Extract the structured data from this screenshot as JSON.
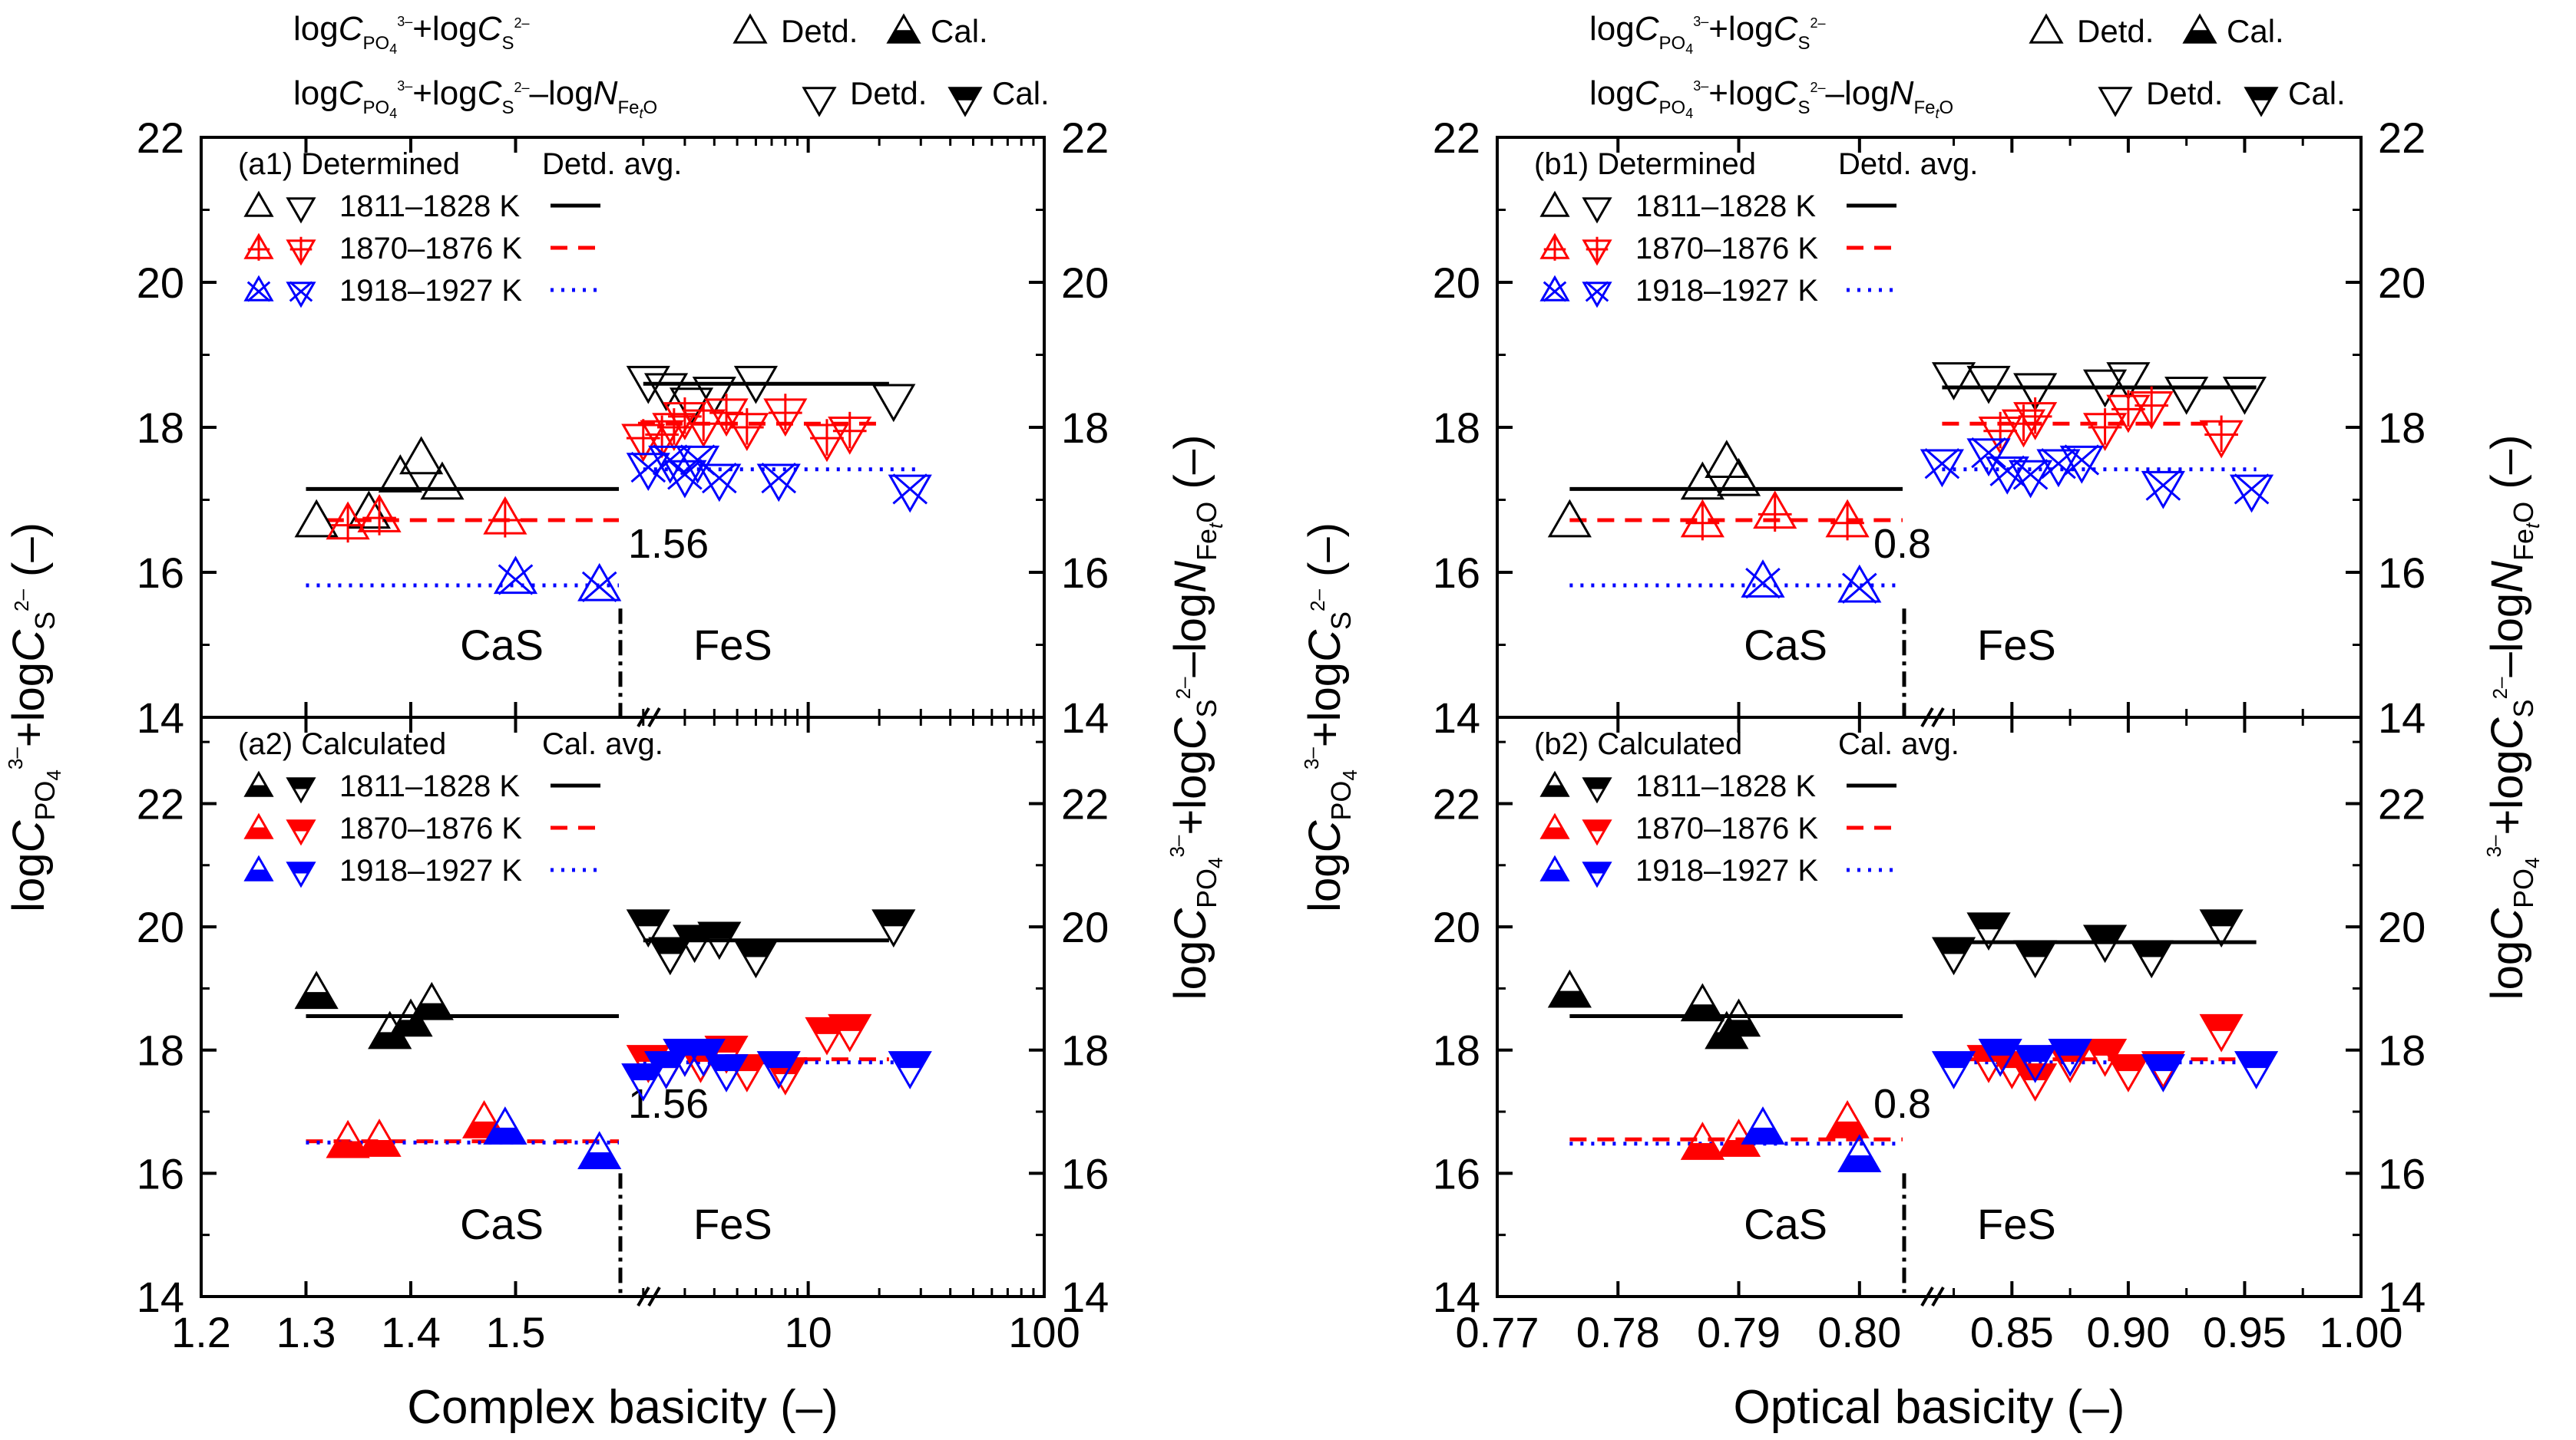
{
  "legend": {
    "row1": {
      "lead": "log",
      "C": "C",
      "po4_sub": "PO",
      "po4_sub2": "4",
      "po4_sup": "3–",
      "plus": "+log",
      "s_sub": "S",
      "s_sup": "2–"
    },
    "row2": {
      "minus": "–log",
      "N": "N",
      "fe_sub": "Fe",
      "t_sub": "t",
      "o_sub": "O"
    },
    "detd": "Detd.",
    "cal": "Cal."
  },
  "axis_labels": {
    "y_left_parts": [
      "log",
      "C",
      "PO",
      "4",
      "3–",
      "+log",
      "C",
      "S",
      "2–",
      " (–)"
    ],
    "y_right_parts": [
      "log",
      "C",
      "PO",
      "4",
      "3–",
      "+log",
      "C",
      "S",
      "2–",
      "–log",
      "N",
      "Fe",
      "t",
      "O",
      " (–)"
    ]
  },
  "chart_data": [
    {
      "id": "a",
      "type": "scatter",
      "xlabel": "Complex basicity (–)",
      "x_ticks_lin": [
        "1.2",
        "1.3",
        "1.4",
        "1.5"
      ],
      "x_ticks_log": [
        "10",
        "100"
      ],
      "x_lin_range": [
        1.2,
        1.6
      ],
      "x_log_range": [
        1.6,
        100
      ],
      "break_value": "1.56",
      "phase_left": "CaS",
      "phase_right": "FeS",
      "ylim": [
        14,
        22
      ],
      "y_ticks": [
        "14",
        "16",
        "18",
        "20",
        "22"
      ],
      "panels": [
        {
          "title": "(a1) Determined",
          "avg_title": "Detd. avg.",
          "temps": [
            "1811–1828 K",
            "1870–1876 K",
            "1918–1927 K"
          ],
          "colors": [
            "#000000",
            "#ff0000",
            "#0000ff"
          ],
          "avg": [
            {
              "lin": [
                1.3,
                1.6,
                17.15
              ],
              "log": [
                2.0,
                22,
                18.6
              ]
            },
            {
              "lin": [
                1.32,
                1.6,
                16.72
              ],
              "log": [
                1.9,
                20,
                18.05
              ]
            },
            {
              "lin": [
                1.3,
                1.6,
                15.82
              ],
              "log": [
                2.0,
                30,
                17.42
              ]
            }
          ],
          "series": [
            {
              "name": "Detd. 1811–1828 K CaS",
              "temp": 0,
              "marker": "up",
              "style": "hollow",
              "x": [
                1.31,
                1.36,
                1.41,
                1.39,
                1.43
              ],
              "y": [
                16.68,
                16.8,
                17.55,
                17.3,
                17.2
              ],
              "scale": "lin"
            },
            {
              "name": "Detd. 1811–1828 K FeS",
              "temp": 0,
              "marker": "down",
              "style": "hollow",
              "x": [
                2.1,
                2.5,
                3.2,
                4,
                6,
                23
              ],
              "y": [
                18.65,
                18.55,
                18.35,
                18.5,
                18.65,
                18.4
              ],
              "scale": "log"
            },
            {
              "name": "Detd. 1870–1876 K CaS",
              "temp": 1,
              "marker": "up",
              "style": "cross",
              "x": [
                1.34,
                1.37,
                1.49
              ],
              "y": [
                16.65,
                16.75,
                16.72
              ],
              "scale": "lin"
            },
            {
              "name": "Detd. 1870–1876 K FeS",
              "temp": 1,
              "marker": "down",
              "style": "cross",
              "x": [
                2.0,
                2.4,
                2.7,
                3.0,
                3.6,
                4.5,
                5.5,
                8,
                12,
                15
              ],
              "y": [
                17.85,
                17.9,
                18.0,
                18.15,
                18.05,
                18.2,
                18.0,
                18.2,
                17.85,
                17.95
              ],
              "scale": "log"
            },
            {
              "name": "Detd. 1918–1927 K CaS",
              "temp": 2,
              "marker": "up",
              "style": "xcross",
              "x": [
                1.5,
                1.58
              ],
              "y": [
                15.9,
                15.8
              ],
              "scale": "lin"
            },
            {
              "name": "Detd. 1918–1927 K FeS",
              "temp": 2,
              "marker": "down",
              "style": "xcross",
              "x": [
                2.1,
                2.6,
                3.0,
                3.4,
                4.2,
                7.5,
                27
              ],
              "y": [
                17.45,
                17.55,
                17.35,
                17.55,
                17.3,
                17.3,
                17.15
              ],
              "scale": "log"
            }
          ]
        },
        {
          "title": "(a2) Calculated",
          "avg_title": "Cal. avg.",
          "temps": [
            "1811–1828 K",
            "1870–1876 K",
            "1918–1927 K"
          ],
          "colors": [
            "#000000",
            "#ff0000",
            "#0000ff"
          ],
          "avg": [
            {
              "lin": [
                1.3,
                1.6,
                18.55
              ],
              "log": [
                2.0,
                22,
                19.78
              ]
            },
            {
              "lin": [
                1.3,
                1.6,
                16.52
              ],
              "log": [
                1.9,
                22,
                17.85
              ]
            },
            {
              "lin": [
                1.3,
                1.6,
                16.5
              ],
              "log": [
                2.0,
                30,
                17.8
              ]
            }
          ],
          "series": [
            {
              "name": "Cal. 1811–1828 K CaS",
              "temp": 0,
              "marker": "up",
              "style": "hollow-solid",
              "x": [
                1.31,
                1.38,
                1.4,
                1.42
              ],
              "y": [
                18.9,
                18.25,
                18.45,
                18.72
              ],
              "scale": "lin"
            },
            {
              "name": "Cal. 1811–1828 K FeS",
              "temp": 0,
              "marker": "down",
              "style": "hollow-solid",
              "x": [
                2.1,
                2.6,
                3.3,
                4.2,
                6,
                23
              ],
              "y": [
                20.05,
                19.6,
                19.8,
                19.85,
                19.55,
                20.05
              ],
              "scale": "log"
            },
            {
              "name": "Cal. 1870–1876 K CaS",
              "temp": 1,
              "marker": "up",
              "style": "hollow-solid",
              "x": [
                1.34,
                1.37,
                1.47
              ],
              "y": [
                16.48,
                16.5,
                16.8
              ],
              "scale": "lin"
            },
            {
              "name": "Cal. 1870–1876 K FeS",
              "temp": 1,
              "marker": "down",
              "style": "hollow-solid",
              "x": [
                2.1,
                2.5,
                3.0,
                3.5,
                4.5,
                5.5,
                8,
                12,
                15
              ],
              "y": [
                17.85,
                17.75,
                17.95,
                17.85,
                18.0,
                17.7,
                17.65,
                18.3,
                18.35
              ],
              "scale": "log"
            },
            {
              "name": "Cal. 1918–1927 K CaS",
              "temp": 2,
              "marker": "up",
              "style": "hollow-solid",
              "x": [
                1.49,
                1.58
              ],
              "y": [
                16.7,
                16.3
              ],
              "scale": "lin"
            },
            {
              "name": "Cal. 1918–1927 K FeS",
              "temp": 2,
              "marker": "down",
              "style": "hollow-solid",
              "x": [
                2.0,
                2.5,
                3.0,
                3.6,
                4.5,
                7.5,
                27
              ],
              "y": [
                17.55,
                17.75,
                17.95,
                17.95,
                17.7,
                17.75,
                17.75
              ],
              "scale": "log"
            }
          ]
        }
      ]
    },
    {
      "id": "b",
      "type": "scatter",
      "xlabel": "Optical basicity (–)",
      "x_ticks_lin": [
        "0.77",
        "0.78",
        "0.79",
        "0.80"
      ],
      "x_ticks_log": [
        "0.85",
        "0.90",
        "0.95",
        "1.00"
      ],
      "x_lin_range": [
        0.77,
        0.8037
      ],
      "x_log_range": [
        0.8037,
        1.0
      ],
      "x_right_linear": true,
      "break_value": "0.8",
      "phase_left": "CaS",
      "phase_right": "FeS",
      "ylim": [
        14,
        22
      ],
      "y_ticks": [
        "14",
        "16",
        "18",
        "20",
        "22"
      ],
      "panels": [
        {
          "title": "(b1) Determined",
          "avg_title": "Detd. avg.",
          "temps": [
            "1811–1828 K",
            "1870–1876 K",
            "1918–1927 K"
          ],
          "colors": [
            "#000000",
            "#ff0000",
            "#0000ff"
          ],
          "avg": [
            {
              "lin": [
                0.776,
                0.8037,
                17.15
              ],
              "log": [
                0.82,
                0.955,
                18.55
              ]
            },
            {
              "lin": [
                0.776,
                0.8037,
                16.72
              ],
              "log": [
                0.82,
                0.94,
                18.05
              ]
            },
            {
              "lin": [
                0.776,
                0.8037,
                15.82
              ],
              "log": [
                0.82,
                0.955,
                17.42
              ]
            }
          ],
          "series": [
            {
              "name": "Detd. 1811–1828 K CaS",
              "temp": 0,
              "marker": "up",
              "style": "hollow",
              "x": [
                0.776,
                0.787,
                0.789,
                0.79
              ],
              "y": [
                16.68,
                17.2,
                17.5,
                17.25
              ],
              "scale": "lin"
            },
            {
              "name": "Detd. 1811–1828 K FeS",
              "temp": 0,
              "marker": "down",
              "style": "hollow",
              "x": [
                0.825,
                0.84,
                0.86,
                0.89,
                0.9,
                0.925,
                0.95
              ],
              "y": [
                18.7,
                18.65,
                18.55,
                18.6,
                18.7,
                18.5,
                18.5
              ],
              "scale": "log"
            },
            {
              "name": "Detd. 1870–1876 K CaS",
              "temp": 1,
              "marker": "up",
              "style": "cross",
              "x": [
                0.787,
                0.793,
                0.799
              ],
              "y": [
                16.68,
                16.8,
                16.68
              ],
              "scale": "lin"
            },
            {
              "name": "Detd. 1870–1876 K FeS",
              "temp": 1,
              "marker": "down",
              "style": "cross",
              "x": [
                0.845,
                0.855,
                0.86,
                0.89,
                0.9,
                0.91,
                0.94
              ],
              "y": [
                17.95,
                18.05,
                18.15,
                18.0,
                18.25,
                18.3,
                17.9
              ],
              "scale": "log"
            },
            {
              "name": "Detd. 1918–1927 K CaS",
              "temp": 2,
              "marker": "up",
              "style": "xcross",
              "x": [
                0.792,
                0.8
              ],
              "y": [
                15.85,
                15.78
              ],
              "scale": "lin"
            },
            {
              "name": "Detd. 1918–1927 K FeS",
              "temp": 2,
              "marker": "down",
              "style": "xcross",
              "x": [
                0.82,
                0.84,
                0.848,
                0.858,
                0.87,
                0.88,
                0.915,
                0.953
              ],
              "y": [
                17.5,
                17.65,
                17.4,
                17.35,
                17.5,
                17.55,
                17.2,
                17.15
              ],
              "scale": "log"
            }
          ]
        },
        {
          "title": "(b2) Calculated",
          "avg_title": "Cal. avg.",
          "temps": [
            "1811–1828 K",
            "1870–1876 K",
            "1918–1927 K"
          ],
          "colors": [
            "#000000",
            "#ff0000",
            "#0000ff"
          ],
          "avg": [
            {
              "lin": [
                0.776,
                0.8037,
                18.55
              ],
              "log": [
                0.82,
                0.955,
                19.75
              ]
            },
            {
              "lin": [
                0.776,
                0.8037,
                16.55
              ],
              "log": [
                0.82,
                0.955,
                17.85
              ]
            },
            {
              "lin": [
                0.776,
                0.8037,
                16.48
              ],
              "log": [
                0.82,
                0.955,
                17.8
              ]
            }
          ],
          "series": [
            {
              "name": "Cal. 1811–1828 K CaS",
              "temp": 0,
              "marker": "up",
              "style": "hollow-solid",
              "x": [
                0.776,
                0.787,
                0.789,
                0.79
              ],
              "y": [
                18.92,
                18.7,
                18.25,
                18.45
              ],
              "scale": "lin"
            },
            {
              "name": "Cal. 1811–1828 K FeS",
              "temp": 0,
              "marker": "down",
              "style": "hollow-solid",
              "x": [
                0.825,
                0.84,
                0.86,
                0.89,
                0.91,
                0.94
              ],
              "y": [
                19.6,
                20.0,
                19.55,
                19.8,
                19.55,
                20.05
              ],
              "scale": "log"
            },
            {
              "name": "Cal. 1870–1876 K CaS",
              "temp": 1,
              "marker": "up",
              "style": "hollow-solid",
              "x": [
                0.787,
                0.79,
                0.799
              ],
              "y": [
                16.45,
                16.5,
                16.8
              ],
              "scale": "lin"
            },
            {
              "name": "Cal. 1870–1876 K FeS",
              "temp": 1,
              "marker": "down",
              "style": "hollow-solid",
              "x": [
                0.84,
                0.85,
                0.86,
                0.875,
                0.89,
                0.9,
                0.915,
                0.94
              ],
              "y": [
                17.85,
                17.75,
                17.55,
                17.85,
                17.95,
                17.7,
                17.75,
                18.35
              ],
              "scale": "log"
            },
            {
              "name": "Cal. 1918–1927 K CaS",
              "temp": 2,
              "marker": "up",
              "style": "hollow-solid",
              "x": [
                0.792,
                0.8
              ],
              "y": [
                16.7,
                16.25
              ],
              "scale": "lin"
            },
            {
              "name": "Cal. 1918–1927 K FeS",
              "temp": 2,
              "marker": "down",
              "style": "hollow-solid",
              "x": [
                0.825,
                0.845,
                0.86,
                0.875,
                0.915,
                0.955
              ],
              "y": [
                17.75,
                17.95,
                17.85,
                17.95,
                17.7,
                17.75
              ],
              "scale": "log"
            }
          ]
        }
      ]
    }
  ]
}
